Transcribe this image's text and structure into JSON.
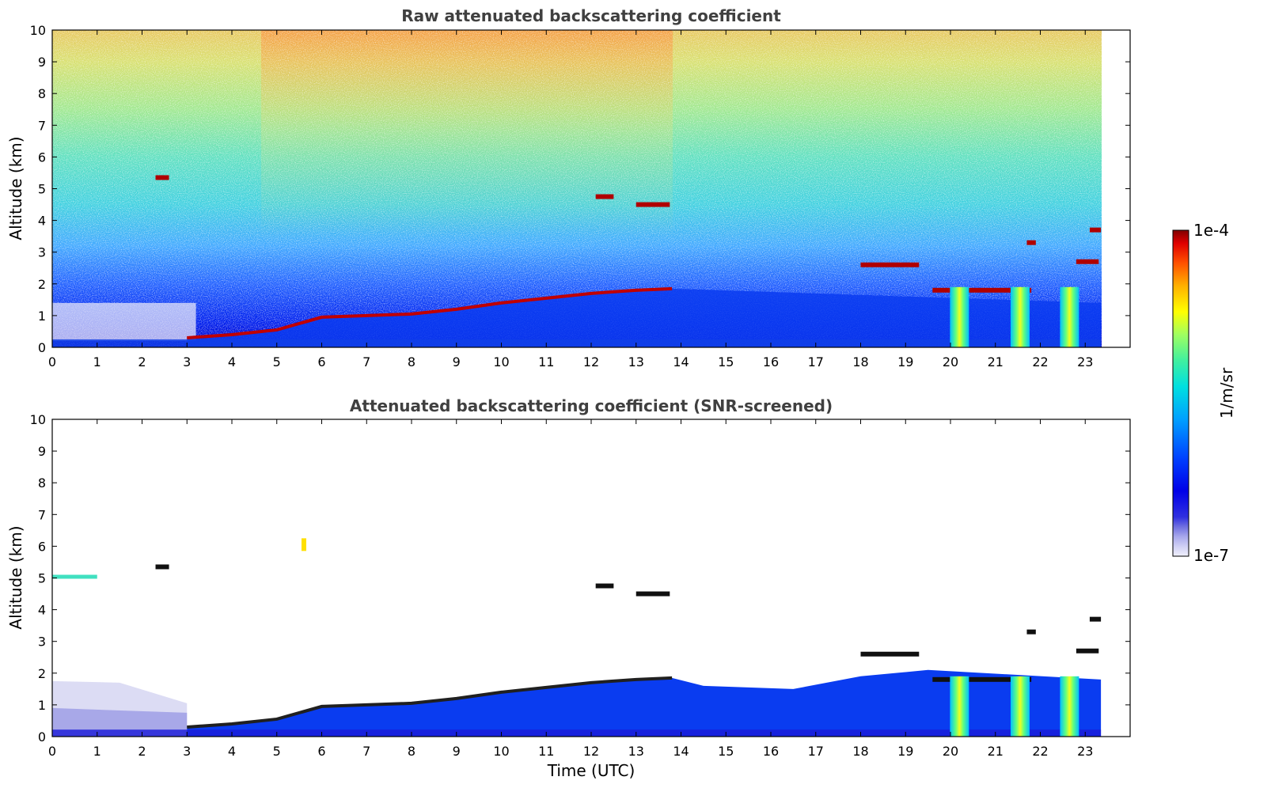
{
  "chart_data": [
    {
      "type": "heatmap",
      "title": "Raw attenuated backscattering coefficient",
      "xlabel": "",
      "ylabel": "Altitude (km)",
      "xlim": [
        0,
        24
      ],
      "ylim": [
        0,
        10
      ],
      "x_ticks": [
        "0",
        "1",
        "2",
        "3",
        "4",
        "5",
        "6",
        "7",
        "8",
        "9",
        "10",
        "11",
        "12",
        "13",
        "14",
        "15",
        "16",
        "17",
        "18",
        "19",
        "20",
        "21",
        "22",
        "23"
      ],
      "y_ticks": [
        "0",
        "1",
        "2",
        "3",
        "4",
        "5",
        "6",
        "7",
        "8",
        "9",
        "10"
      ],
      "data_extent_hours": [
        0,
        23.35
      ],
      "features": {
        "boundary_layer_top_km": [
          [
            3.0,
            0.3
          ],
          [
            4.0,
            0.4
          ],
          [
            5.0,
            0.55
          ],
          [
            6.0,
            0.95
          ],
          [
            7.0,
            1.0
          ],
          [
            8.0,
            1.05
          ],
          [
            9.0,
            1.2
          ],
          [
            10.0,
            1.4
          ],
          [
            11.0,
            1.55
          ],
          [
            12.0,
            1.7
          ],
          [
            13.0,
            1.8
          ],
          [
            13.8,
            1.85
          ]
        ],
        "cloud_layers": [
          {
            "t_start": 2.3,
            "t_end": 2.6,
            "alt_km": 5.35
          },
          {
            "t_start": 12.1,
            "t_end": 12.5,
            "alt_km": 4.75
          },
          {
            "t_start": 13.0,
            "t_end": 13.75,
            "alt_km": 4.5
          },
          {
            "t_start": 18.0,
            "t_end": 19.3,
            "alt_km": 2.6
          },
          {
            "t_start": 19.6,
            "t_end": 21.8,
            "alt_km": 1.8
          },
          {
            "t_start": 21.7,
            "t_end": 21.9,
            "alt_km": 3.3
          },
          {
            "t_start": 22.8,
            "t_end": 23.3,
            "alt_km": 2.7
          },
          {
            "t_start": 23.1,
            "t_end": 23.35,
            "alt_km": 3.7
          }
        ],
        "precipitation_shafts_hours": [
          20.2,
          21.55,
          22.65
        ]
      }
    },
    {
      "type": "heatmap",
      "title": "Attenuated backscattering coefficient (SNR-screened)",
      "xlabel": "Time (UTC)",
      "ylabel": "Altitude (km)",
      "xlim": [
        0,
        24
      ],
      "ylim": [
        0,
        10
      ],
      "x_ticks": [
        "0",
        "1",
        "2",
        "3",
        "4",
        "5",
        "6",
        "7",
        "8",
        "9",
        "10",
        "11",
        "12",
        "13",
        "14",
        "15",
        "16",
        "17",
        "18",
        "19",
        "20",
        "21",
        "22",
        "23"
      ],
      "y_ticks": [
        "0",
        "1",
        "2",
        "3",
        "4",
        "5",
        "6",
        "7",
        "8",
        "9",
        "10"
      ],
      "data_extent_hours": [
        0,
        23.35
      ]
    }
  ],
  "colorbar": {
    "label": "1/m/sr",
    "min_label": "1e-7",
    "max_label": "1e-4",
    "scale": "log",
    "colormap": "jet-like",
    "low_end_colors": [
      "#f0f0fc",
      "#d8d8f4",
      "#b8b8ec",
      "#9090e0",
      "#6060dc"
    ],
    "jet_colors": [
      "#0000d0",
      "#0040ff",
      "#00a0ff",
      "#00e0e0",
      "#40f0a0",
      "#a0ff60",
      "#ffff00",
      "#ffb000",
      "#ff5000",
      "#e00000",
      "#800000"
    ]
  }
}
